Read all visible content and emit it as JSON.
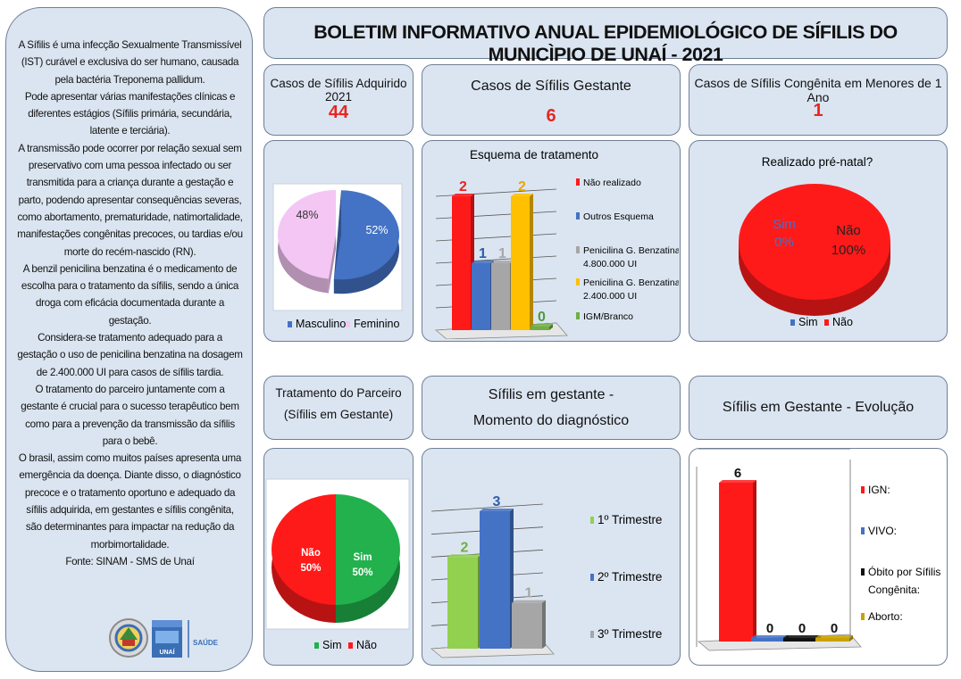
{
  "title": "BOLETIM INFORMATIVO ANUAL EPIDEMIOLÓGICO DE SÍFILIS DO MUNICÌPIO DE UNAÍ - 2021",
  "sidebar": {
    "paragraphs": [
      "A Sífilis é uma infecção Sexualmente Transmissível (IST) curável e exclusiva do ser humano, causada pela bactéria Treponema pallidum.",
      "Pode apresentar várias manifestações clínicas e diferentes estágios (Sífilis primária, secundária, latente e terciária).",
      "A transmissão pode ocorrer por relação sexual sem preservativo com uma pessoa infectado ou ser transmitida para a criança durante a gestação e parto, podendo apresentar consequências severas, como abortamento, prematuridade, natimortalidade, manifestações congênitas precoces, ou tardias e/ou morte do recém-nascido (RN).",
      "A benzil penicilina benzatina é o medicamento de escolha para o tratamento da sífilis, sendo a única droga com eficácia documentada durante a gestação.",
      "Considera-se tratamento adequado para a gestação o uso de penicilina benzatina na dosagem de 2.400.000 UI para casos de sífilis tardia.",
      "O tratamento do parceiro juntamente com a gestante é crucial para o sucesso terapêutico bem como para a prevenção da transmissão da sífilis para o bebê.",
      "O brasil, assim como muitos países apresenta uma emergência da doença. Diante disso, o diagnóstico precoce e o tratamento oportuno e adequado da sífilis adquirida, em gestantes e sífilis congênita, são determinantes para impactar na redução da morbimortalidade.",
      "Fonte: SINAM - SMS de Unaí"
    ],
    "logo_text_1": "UNAÍ",
    "logo_text_2": "SAÚDE"
  },
  "kpis": [
    {
      "label": "Casos de Sífilis Adquirido 2021",
      "value": "44"
    },
    {
      "label": "Casos de Sífilis Gestante",
      "value": "6"
    },
    {
      "label": "Casos de Sífilis Congênita em Menores de 1 Ano",
      "value": "1"
    }
  ],
  "section_titles": {
    "parceiro_line1": "Tratamento do Parceiro",
    "parceiro_line2": "(Sífilis em Gestante)",
    "momento_line1": "Sífilis em gestante -",
    "momento_line2": "Momento do diagnóstico",
    "evolucao": "Sífilis em Gestante - Evolução"
  },
  "colors": {
    "red": "#ff1a1a",
    "blue": "#4472c4",
    "gray": "#a6a6a6",
    "yellow": "#ffc000",
    "green": "#70ad47",
    "pink": "#f2c4f2",
    "black": "#111111",
    "mustard": "#c9a100",
    "greenpie": "#22b14c"
  },
  "chart_data": [
    {
      "id": "sexo",
      "type": "pie",
      "title": "",
      "slices": [
        {
          "name": "Masculino",
          "value": 52,
          "label": "52%",
          "color": "#4472c4"
        },
        {
          "name": "Feminino",
          "value": 48,
          "label": "48%",
          "color": "#f4c6f4"
        }
      ],
      "legend": "bottom"
    },
    {
      "id": "esquema",
      "type": "bar",
      "title": "Esquema de tratamento",
      "categories": [
        "Não realizado",
        "Outros Esquema",
        "Penicilina G. Benzatina 4.800.000 UI",
        "Penicilina G. Benzatina 2.400.000 UI",
        "IGM/Branco"
      ],
      "values": [
        2,
        1,
        1,
        2,
        0
      ],
      "colors": [
        "#ff1a1a",
        "#4472c4",
        "#a6a6a6",
        "#ffc000",
        "#70ad47"
      ],
      "legend": "right",
      "ylim": [
        0,
        2
      ]
    },
    {
      "id": "prenatal",
      "type": "pie",
      "title": "Realizado pré-natal?",
      "slices": [
        {
          "name": "Sim",
          "value": 0,
          "label_name": "Sim",
          "label_pct": "0%",
          "color": "#4472c4"
        },
        {
          "name": "Não",
          "value": 100,
          "label_name": "Não",
          "label_pct": "100%",
          "color": "#ff1a1a"
        }
      ],
      "legend": "bottom"
    },
    {
      "id": "parceiro",
      "type": "pie",
      "title": "",
      "slices": [
        {
          "name": "Sim",
          "value": 50,
          "label_name": "Sim",
          "label_pct": "50%",
          "color": "#22b14c"
        },
        {
          "name": "Não",
          "value": 50,
          "label_name": "Não",
          "label_pct": "50%",
          "color": "#ff1a1a"
        }
      ],
      "legend": "bottom"
    },
    {
      "id": "momento",
      "type": "bar",
      "title": "",
      "categories": [
        "1º Trimestre",
        "2º Trimestre",
        "3º Trimestre"
      ],
      "values": [
        2,
        3,
        1
      ],
      "colors": [
        "#92d050",
        "#4472c4",
        "#a6a6a6"
      ],
      "legend": "right",
      "ylim": [
        0,
        3
      ]
    },
    {
      "id": "evolucao",
      "type": "bar",
      "title": "",
      "categories": [
        "IGN:",
        "VIVO:",
        "Óbito por Sífilis Congênita:",
        "Aborto:"
      ],
      "values": [
        6,
        0,
        0,
        0
      ],
      "colors": [
        "#ff1a1a",
        "#4472c4",
        "#111111",
        "#c9a100"
      ],
      "legend": "right",
      "ylim": [
        0,
        6
      ]
    }
  ]
}
